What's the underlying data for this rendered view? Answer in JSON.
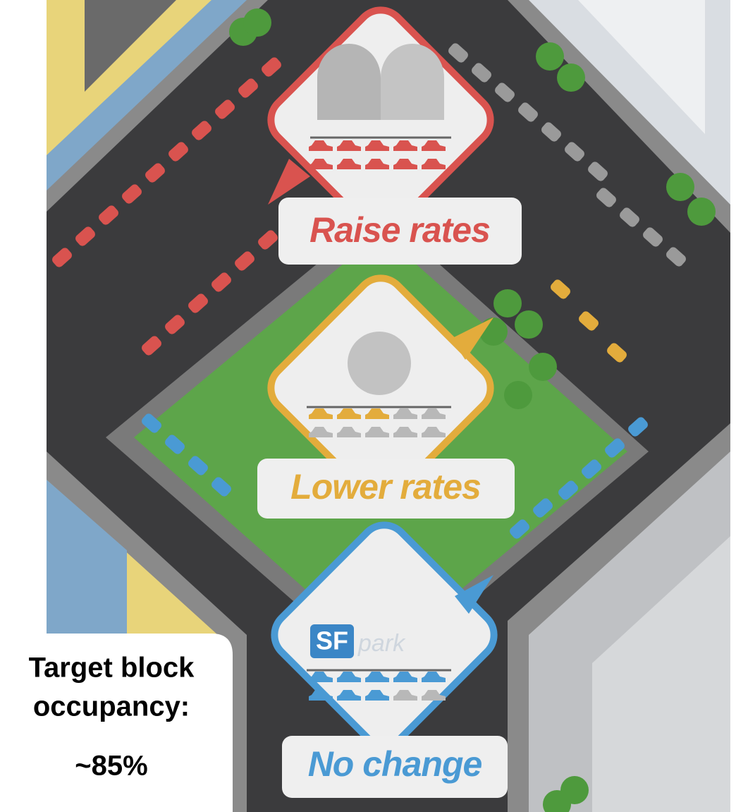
{
  "signs": [
    {
      "label": "Raise rates"
    },
    {
      "label": "Lower rates"
    },
    {
      "label": "No change"
    }
  ],
  "logo": {
    "sf": "SF",
    "park": "park"
  },
  "target": {
    "lines": [
      "Target block",
      "occupancy:"
    ],
    "value": "~85%"
  }
}
